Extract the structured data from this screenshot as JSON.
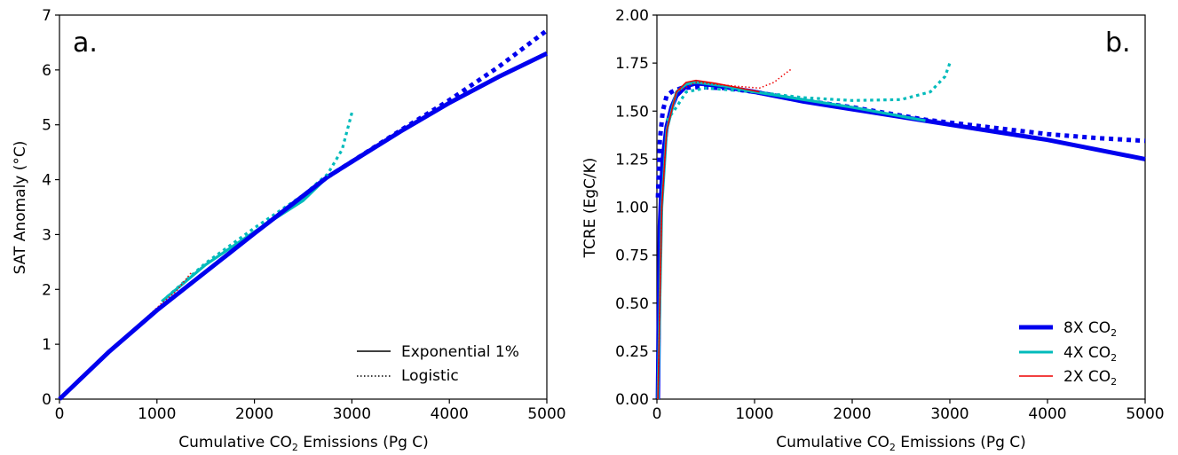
{
  "chart_data": [
    {
      "panel_label": "a.",
      "type": "line",
      "xlabel": {
        "pre": "Cumulative CO",
        "sub": "2",
        "post": " Emissions (Pg C)"
      },
      "ylabel": "SAT Anomaly (°C)",
      "xlim": [
        0,
        5000
      ],
      "ylim": [
        0,
        7
      ],
      "xticks": [
        0,
        1000,
        2000,
        3000,
        4000,
        5000
      ],
      "yticks": [
        0,
        1,
        2,
        3,
        4,
        5,
        6,
        7
      ],
      "grid": false,
      "legend": {
        "position": "lower-right",
        "entries": [
          {
            "label": "Exponential 1%",
            "style": "solid",
            "color": "#000000"
          },
          {
            "label": "Logistic",
            "style": "dotted",
            "color": "#000000"
          }
        ]
      },
      "series": [
        {
          "scenario": "8X CO2",
          "style": "solid",
          "color": "#0000ee",
          "x": [
            2750,
            3000,
            3500,
            4000,
            4500,
            5000
          ],
          "y": [
            4.05,
            4.33,
            4.88,
            5.4,
            5.87,
            6.3
          ]
        },
        {
          "scenario": "8X CO2",
          "style": "dotted",
          "color": "#0000ee",
          "x": [
            2750,
            3000,
            3500,
            4000,
            4500,
            5000
          ],
          "y": [
            4.05,
            4.33,
            4.9,
            5.45,
            6.05,
            6.72
          ]
        },
        {
          "scenario": "4X CO2",
          "style": "solid",
          "color": "#00bbbb",
          "x": [
            1050,
            1500,
            2000,
            2500,
            2750
          ],
          "y": [
            1.78,
            2.45,
            3.05,
            3.62,
            4.05
          ]
        },
        {
          "scenario": "4X CO2",
          "style": "dotted",
          "color": "#00bbbb",
          "x": [
            1050,
            1500,
            2000,
            2500,
            2750,
            2900,
            3000
          ],
          "y": [
            1.78,
            2.48,
            3.12,
            3.72,
            4.1,
            4.55,
            5.22
          ]
        },
        {
          "scenario": "2X CO2",
          "style": "solid",
          "color": "#ee0000",
          "x": [
            0,
            200,
            500,
            800,
            1050
          ],
          "y": [
            0.0,
            0.38,
            0.86,
            1.33,
            1.72
          ]
        },
        {
          "scenario": "2X CO2",
          "style": "dotted",
          "color": "#ee0000",
          "x": [
            0,
            500,
            1050,
            1200,
            1350
          ],
          "y": [
            0.0,
            0.84,
            1.75,
            1.97,
            2.3
          ]
        },
        {
          "scenario": "8X CO2",
          "style": "solid",
          "color": "#0000ee",
          "x": [
            0,
            500,
            1000,
            2000,
            2750
          ],
          "y": [
            0.0,
            0.85,
            1.62,
            3.02,
            4.05
          ]
        }
      ]
    },
    {
      "panel_label": "b.",
      "type": "line",
      "xlabel": {
        "pre": "Cumulative CO",
        "sub": "2",
        "post": " Emissions (Pg C)"
      },
      "ylabel": "TCRE (EgC/K)",
      "xlim": [
        0,
        5000
      ],
      "ylim": [
        0,
        2
      ],
      "xticks": [
        0,
        1000,
        2000,
        3000,
        4000,
        5000
      ],
      "yticks": [
        "0.00",
        "0.25",
        "0.50",
        "0.75",
        "1.00",
        "1.25",
        "1.50",
        "1.75",
        "2.00"
      ],
      "grid": false,
      "legend": {
        "position": "lower-right",
        "entries": [
          {
            "label_pre": "8X CO",
            "label_sub": "2",
            "color": "#0000ee",
            "width": 5
          },
          {
            "label_pre": "4X CO",
            "label_sub": "2",
            "color": "#00bbbb",
            "width": 3
          },
          {
            "label_pre": "2X CO",
            "label_sub": "2",
            "color": "#ee0000",
            "width": 1.5
          }
        ]
      },
      "series": [
        {
          "scenario": "8X CO2",
          "style": "solid",
          "color": "#0000ee",
          "x": [
            10,
            30,
            60,
            100,
            150,
            200,
            300,
            400,
            500,
            700,
            1000,
            1500,
            2000,
            2750,
            3500,
            4000,
            4500,
            5000
          ],
          "y": [
            0.0,
            0.9,
            1.25,
            1.42,
            1.52,
            1.58,
            1.63,
            1.645,
            1.64,
            1.625,
            1.6,
            1.55,
            1.51,
            1.45,
            1.39,
            1.35,
            1.3,
            1.25
          ]
        },
        {
          "scenario": "8X CO2",
          "style": "dotted",
          "color": "#0000ee",
          "x": [
            10,
            30,
            60,
            100,
            150,
            250,
            400,
            700,
            1000,
            1500,
            2000,
            2750,
            3500,
            4000,
            4500,
            5000
          ],
          "y": [
            1.05,
            1.35,
            1.5,
            1.58,
            1.6,
            1.62,
            1.625,
            1.62,
            1.6,
            1.555,
            1.52,
            1.455,
            1.41,
            1.38,
            1.36,
            1.345
          ]
        },
        {
          "scenario": "4X CO2",
          "style": "solid",
          "color": "#00bbbb",
          "x": [
            10,
            50,
            100,
            200,
            300,
            400,
            700,
            1000,
            1500,
            2000,
            2750
          ],
          "y": [
            0.0,
            1.0,
            1.4,
            1.6,
            1.64,
            1.65,
            1.63,
            1.6,
            1.56,
            1.52,
            1.45
          ]
        },
        {
          "scenario": "4X CO2",
          "style": "dotted",
          "color": "#00bbbb",
          "x": [
            100,
            200,
            300,
            500,
            1000,
            1500,
            2000,
            2500,
            2800,
            2950,
            3000
          ],
          "y": [
            1.45,
            1.52,
            1.6,
            1.62,
            1.6,
            1.57,
            1.555,
            1.56,
            1.6,
            1.68,
            1.75
          ]
        },
        {
          "scenario": "2X CO2",
          "style": "solid",
          "color": "#ee0000",
          "x": [
            10,
            50,
            100,
            200,
            300,
            400,
            600,
            800,
            1050
          ],
          "y": [
            0.0,
            1.0,
            1.4,
            1.6,
            1.65,
            1.66,
            1.645,
            1.625,
            1.6
          ]
        },
        {
          "scenario": "2X CO2",
          "style": "dotted",
          "color": "#ee0000",
          "x": [
            10,
            50,
            100,
            200,
            400,
            800,
            1050,
            1200,
            1300,
            1380
          ],
          "y": [
            0.0,
            1.0,
            1.4,
            1.6,
            1.65,
            1.63,
            1.62,
            1.65,
            1.69,
            1.72
          ]
        }
      ]
    }
  ]
}
